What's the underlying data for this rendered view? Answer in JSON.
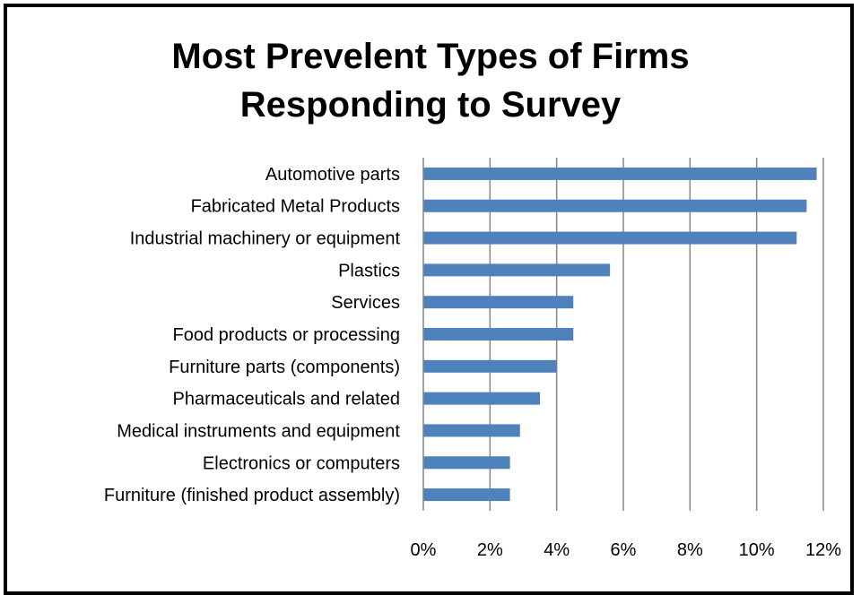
{
  "chart_data": {
    "type": "bar",
    "orientation": "horizontal",
    "title_lines": [
      "Most Prevelent Types of Firms",
      "Responding to Survey"
    ],
    "categories": [
      "Automotive parts",
      "Fabricated Metal Products",
      "Industrial machinery or equipment",
      "Plastics",
      "Services",
      "Food products or processing",
      "Furniture parts (components)",
      "Pharmaceuticals and related",
      "Medical instruments and equipment",
      "Electronics or computers",
      "Furniture (finished product assembly)"
    ],
    "values": [
      11.8,
      11.5,
      11.2,
      5.6,
      4.5,
      4.5,
      4.0,
      3.5,
      2.9,
      2.6,
      2.6
    ],
    "xlim": [
      0,
      12
    ],
    "xticks": [
      0,
      2,
      4,
      6,
      8,
      10,
      12
    ],
    "xtick_labels": [
      "0%",
      "2%",
      "4%",
      "6%",
      "8%",
      "10%",
      "12%"
    ],
    "xlabel": "",
    "ylabel": "",
    "grid": "vertical",
    "legend": "none",
    "bar_color": "#4F81BD",
    "grid_color": "#868686"
  }
}
